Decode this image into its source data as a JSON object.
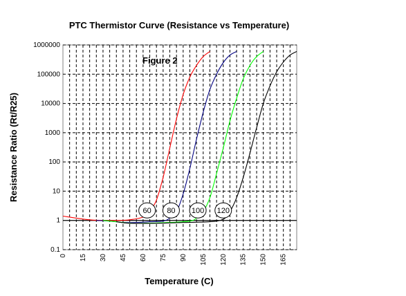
{
  "chart_data": {
    "type": "line",
    "title": "PTC  Thermistor Curve  (Resistance vs Temperature)",
    "annotation": "Figure  2",
    "xlabel": "Temperature (C)",
    "ylabel": "Resistance Ratio (Rt/R25)",
    "xlim": [
      0,
      175
    ],
    "ylim": [
      0.1,
      1000000
    ],
    "yscale": "log",
    "grid": true,
    "x_ticks": [
      "0",
      "15",
      "30",
      "45",
      "60",
      "75",
      "90",
      "105",
      "120",
      "135",
      "150",
      "165"
    ],
    "y_ticks": [
      "0.1",
      "1",
      "10",
      "100",
      "1000",
      "10000",
      "100000",
      "1000000"
    ],
    "series": [
      {
        "label": "60",
        "color": "#ff0000",
        "points": [
          [
            0,
            1.4
          ],
          [
            10,
            1.2
          ],
          [
            20,
            1.05
          ],
          [
            30,
            1.0
          ],
          [
            40,
            1.0
          ],
          [
            50,
            1.05
          ],
          [
            60,
            1.3
          ],
          [
            65,
            2
          ],
          [
            70,
            5
          ],
          [
            75,
            30
          ],
          [
            80,
            300
          ],
          [
            85,
            3000
          ],
          [
            90,
            20000
          ],
          [
            95,
            80000
          ],
          [
            100,
            200000
          ],
          [
            105,
            400000
          ],
          [
            110,
            600000
          ]
        ]
      },
      {
        "label": "80",
        "color": "#000080",
        "points": [
          [
            25,
            1.0
          ],
          [
            35,
            0.95
          ],
          [
            45,
            0.85
          ],
          [
            55,
            0.85
          ],
          [
            65,
            0.9
          ],
          [
            75,
            0.95
          ],
          [
            80,
            1.2
          ],
          [
            85,
            2
          ],
          [
            90,
            8
          ],
          [
            95,
            60
          ],
          [
            100,
            600
          ],
          [
            105,
            5000
          ],
          [
            110,
            30000
          ],
          [
            115,
            100000
          ],
          [
            120,
            250000
          ],
          [
            125,
            450000
          ],
          [
            130,
            600000
          ]
        ]
      },
      {
        "label": "100",
        "color": "#00ff00",
        "points": [
          [
            30,
            1.0
          ],
          [
            40,
            0.9
          ],
          [
            50,
            0.8
          ],
          [
            60,
            0.8
          ],
          [
            80,
            0.85
          ],
          [
            95,
            0.95
          ],
          [
            100,
            1.2
          ],
          [
            105,
            2
          ],
          [
            110,
            6
          ],
          [
            115,
            40
          ],
          [
            120,
            300
          ],
          [
            125,
            2500
          ],
          [
            130,
            15000
          ],
          [
            135,
            70000
          ],
          [
            140,
            200000
          ],
          [
            145,
            400000
          ],
          [
            150,
            600000
          ]
        ]
      },
      {
        "label": "120",
        "color": "#000000",
        "points": [
          [
            40,
            0.9
          ],
          [
            50,
            0.8
          ],
          [
            70,
            0.8
          ],
          [
            90,
            0.85
          ],
          [
            110,
            0.9
          ],
          [
            120,
            1.1
          ],
          [
            125,
            2
          ],
          [
            130,
            6
          ],
          [
            135,
            30
          ],
          [
            140,
            200
          ],
          [
            145,
            1500
          ],
          [
            150,
            10000
          ],
          [
            155,
            40000
          ],
          [
            160,
            120000
          ],
          [
            165,
            260000
          ],
          [
            170,
            450000
          ],
          [
            175,
            600000
          ]
        ]
      }
    ],
    "bubbles": [
      {
        "text": "60",
        "x": 63,
        "y": 2.2
      },
      {
        "text": "80",
        "x": 81,
        "y": 2.2
      },
      {
        "text": "100",
        "x": 101,
        "y": 2.2
      },
      {
        "text": "120",
        "x": 120,
        "y": 2.2
      }
    ]
  }
}
